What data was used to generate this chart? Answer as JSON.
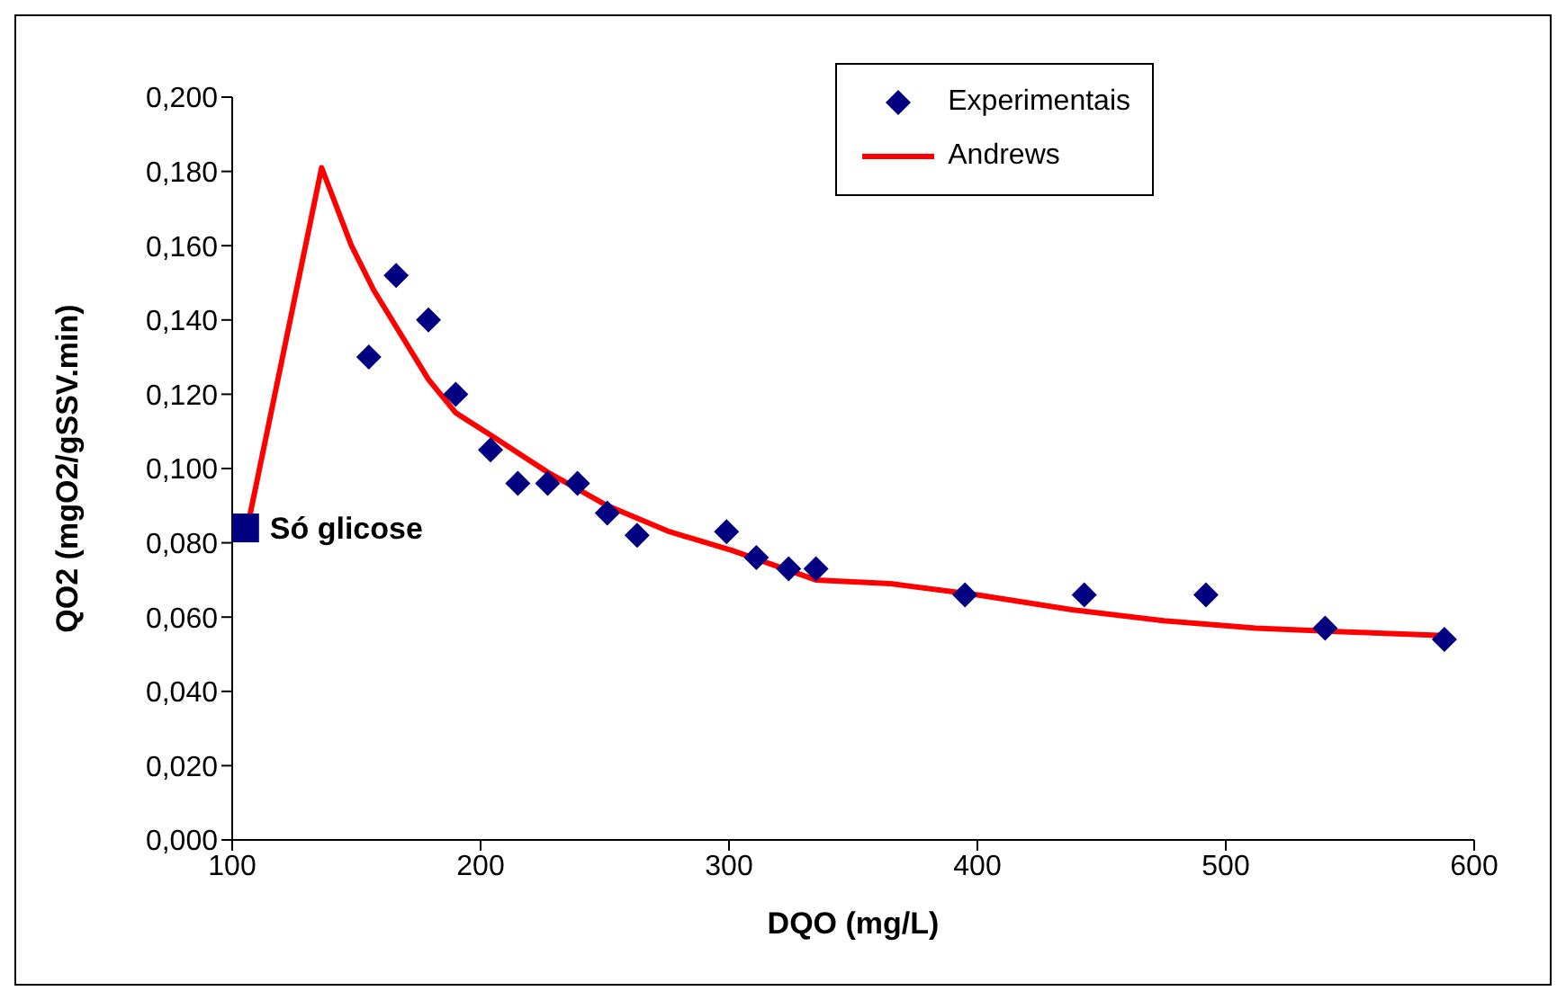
{
  "chart_data": {
    "type": "scatter",
    "xlabel": "DQO (mg/L)",
    "ylabel": "QO2 (mgO2/gSSV.min)",
    "xlim": [
      100,
      600
    ],
    "xticks": [
      100,
      200,
      300,
      400,
      500,
      600
    ],
    "ylim": [
      0,
      0.2
    ],
    "yticks": [
      {
        "value": 0,
        "label": "0,000"
      },
      {
        "value": 0.02,
        "label": "0,020"
      },
      {
        "value": 0.04,
        "label": "0,040"
      },
      {
        "value": 0.06,
        "label": "0,060"
      },
      {
        "value": 0.08,
        "label": "0,080"
      },
      {
        "value": 0.1,
        "label": "0,100"
      },
      {
        "value": 0.12,
        "label": "0,120"
      },
      {
        "value": 0.14,
        "label": "0,140"
      },
      {
        "value": 0.16,
        "label": "0,160"
      },
      {
        "value": 0.18,
        "label": "0,180"
      },
      {
        "value": 0.2,
        "label": "0,200"
      }
    ],
    "grid": false,
    "legend": "top right",
    "series": [
      {
        "name": "Experimentais",
        "marker": "diamond",
        "color": "#000080",
        "x": [
          155,
          166,
          179,
          190,
          204,
          215,
          227,
          239,
          251,
          263,
          299,
          311,
          324,
          335,
          395,
          443,
          492,
          540,
          588
        ],
        "values": [
          0.13,
          0.152,
          0.14,
          0.12,
          0.105,
          0.096,
          0.096,
          0.096,
          0.088,
          0.082,
          0.083,
          0.076,
          0.073,
          0.073,
          0.066,
          0.066,
          0.066,
          0.057,
          0.054
        ]
      },
      {
        "name": "Andrews",
        "type": "line",
        "marker": "none",
        "color": "#ff0000",
        "x": [
          107,
          136,
          148,
          157,
          179,
          190,
          204,
          227,
          251,
          276,
          301,
          335,
          365,
          400,
          438,
          475,
          512,
          549,
          588
        ],
        "values": [
          0.087,
          0.181,
          0.16,
          0.148,
          0.124,
          0.115,
          0.109,
          0.099,
          0.09,
          0.083,
          0.078,
          0.07,
          0.069,
          0.066,
          0.062,
          0.059,
          0.057,
          0.056,
          0.055
        ]
      },
      {
        "marker": "square",
        "color": "#000080",
        "x": [
          105
        ],
        "values": [
          0.084
        ]
      }
    ],
    "annotations": [
      {
        "text": "Só glicose",
        "x": 105,
        "y": 0.084
      }
    ]
  }
}
